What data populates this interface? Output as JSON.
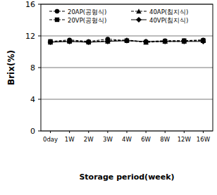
{
  "chart_data": {
    "type": "line",
    "x_label": "Storage period(week)",
    "y_label": "Brix(%)",
    "categories": [
      "0day",
      "1W",
      "2W",
      "3W",
      "4W",
      "6W",
      "8W",
      "12W",
      "16W"
    ],
    "series": [
      {
        "name": "20AP(공형식)",
        "color": "#000000",
        "marker": "circle",
        "line_style": "dashed",
        "values": [
          11.3,
          11.5,
          11.3,
          11.6,
          11.4,
          11.3,
          11.4,
          11.4,
          11.5
        ]
      },
      {
        "name": "40AP(침지식)",
        "color": "#000000",
        "marker": "triangle",
        "line_style": "dashed",
        "values": [
          11.2,
          11.4,
          11.3,
          11.3,
          11.5,
          11.2,
          11.3,
          11.3,
          11.4
        ]
      },
      {
        "name": "20VP(공형식)",
        "color": "#000000",
        "marker": "square",
        "line_style": "dashed",
        "values": [
          11.3,
          11.3,
          11.2,
          11.4,
          11.4,
          11.2,
          11.3,
          11.4,
          11.4
        ]
      },
      {
        "name": "40VP(침지식)",
        "color": "#000000",
        "marker": "diamond",
        "line_style": "solid",
        "values": [
          11.2,
          11.3,
          11.2,
          11.3,
          11.4,
          11.3,
          11.3,
          11.3,
          11.3
        ]
      }
    ],
    "ylim": [
      0,
      16
    ],
    "yticks": [
      0,
      4,
      8,
      12,
      16
    ],
    "grid": true,
    "legend": "top"
  }
}
